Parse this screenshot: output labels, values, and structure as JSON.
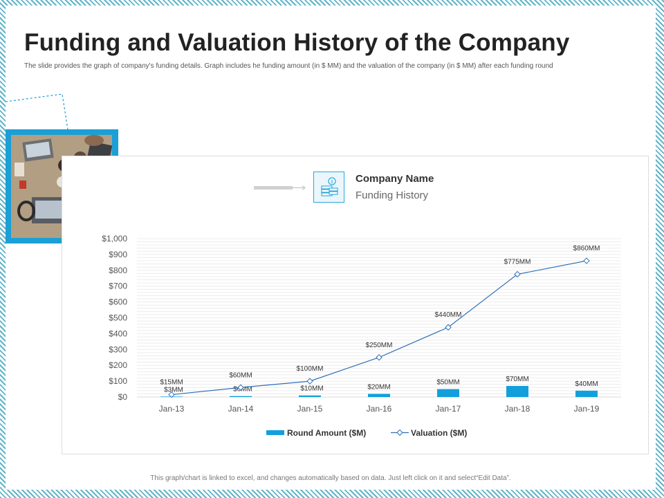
{
  "slide": {
    "title": "Funding and Valuation History of the Company",
    "subtitle": "The slide provides the graph of company's funding details. Graph includes he funding amount (in $ MM)  and the valuation of the company (in $ MM)  after each funding round",
    "footer": "This graph/chart is linked to excel,  and changes automatically based on data. Just left click on it and select“Edit Data”."
  },
  "header": {
    "company_name": "Company Name",
    "subtitle": "Funding History",
    "icon": "money-stack-icon"
  },
  "colors": {
    "accent": "#1a9fd6",
    "bar": "#12a0dd",
    "line": "#2e6fb7"
  },
  "chart_data": {
    "type": "bar",
    "categories": [
      "Jan-13",
      "Jan-14",
      "Jan-15",
      "Jan-16",
      "Jan-17",
      "Jan-18",
      "Jan-19"
    ],
    "series": [
      {
        "name": "Round Amount ($M)",
        "type": "bar",
        "values": [
          3,
          6,
          10,
          20,
          50,
          70,
          40
        ],
        "labels": [
          "$3MM",
          "$6MM",
          "$10MM",
          "$20MM",
          "$50MM",
          "$70MM",
          "$40MM"
        ]
      },
      {
        "name": "Valuation ($M)",
        "type": "line",
        "values": [
          15,
          60,
          100,
          250,
          440,
          775,
          860
        ],
        "labels": [
          "$15MM",
          "$60MM",
          "$100MM",
          "$250MM",
          "$440MM",
          "$775MM",
          "$860MM"
        ]
      }
    ],
    "yticks": [
      "$0",
      "$100",
      "$200",
      "$300",
      "$400",
      "$500",
      "$600",
      "$700",
      "$800",
      "$900",
      "$1,000"
    ],
    "ylim": [
      0,
      1000
    ],
    "grid": true,
    "legend_position": "bottom"
  }
}
